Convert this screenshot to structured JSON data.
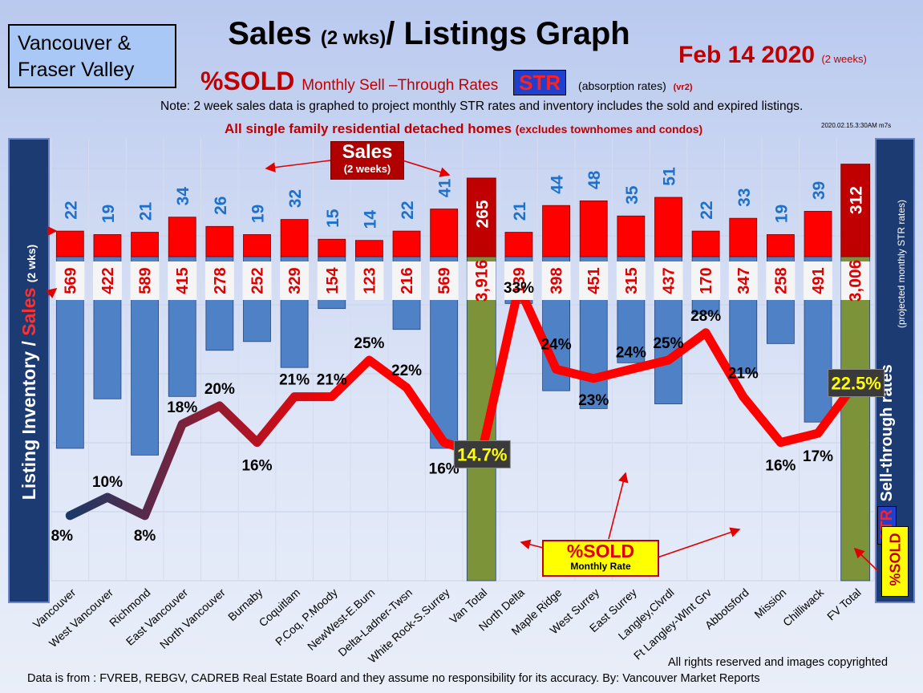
{
  "header": {
    "region_label": "Vancouver & Fraser Valley",
    "title_main": "Sales",
    "title_small": "(2 wks)",
    "title_rest": "/ Listings Graph",
    "date": "Feb 14 2020",
    "date_note": "(2 weeks)",
    "subtitle_sold": "%SOLD",
    "subtitle_rest": "Monthly Sell –Through Rates",
    "str_badge": "STR",
    "absorption": "(absorption rates)",
    "version": "(vr2)",
    "note": "Note: 2 week sales data is graphed to project monthly STR rates and inventory includes the sold and expired listings.",
    "scope_main": "All single family residential detached homes",
    "scope_small": "(excludes townhomes and condos)",
    "stamp": "2020.02.15.3:30AM m7s"
  },
  "side_labels": {
    "left_main": "Listing Inventory /",
    "left_red": "Sales",
    "left_small": "(2 wks)",
    "right_str": "STR",
    "right_main": "Sell-through rates",
    "right_sub": "(projected monthly STR rates)",
    "sold_badge": "%SOLD"
  },
  "legend": {
    "sales_title": "Sales",
    "sales_sub": "(2 weeks)",
    "sold_title": "%SOLD",
    "sold_sub": "Monthly Rate"
  },
  "footer": {
    "source": "Data is from : FVREB, REBGV, CADREB Real Estate Board and they assume no responsibility for its accuracy. By: Vancouver Market Reports",
    "rights": "All rights reserved and  images copyrighted"
  },
  "colors": {
    "sales_bar": "#ff0000",
    "inventory_bar": "#4f81c7",
    "total_bar": "#7c933a",
    "sales_label": "#1f70c8",
    "inventory_label": "#e00000",
    "line_start": "#1a3a66",
    "line_end": "#ff0000"
  },
  "chart_data": {
    "type": "bar",
    "categories": [
      "Vancouver",
      "West Vancouver",
      "Richmond",
      "East Vancouver",
      "North Vancouver",
      "Burnaby",
      "Coquitlam",
      "P.Coq, P.Moody",
      "NewWest-E.Burn",
      "Delta-Ladner-Twsn",
      "White Rock-S.Surrey",
      "Van Total",
      "North Delta",
      "Maple Ridge",
      "West Surrey",
      "East Surrey",
      "Langley,Clvrdl",
      "Ft Langley-Wlnt Grv",
      "Abbotsford",
      "Mission",
      "Chilliwack",
      "FV Total"
    ],
    "series": [
      {
        "name": "Sales",
        "values": [
          22,
          19,
          21,
          34,
          26,
          19,
          32,
          15,
          14,
          22,
          41,
          265,
          21,
          44,
          48,
          35,
          51,
          22,
          33,
          19,
          39,
          312
        ],
        "labels": [
          "22",
          "19",
          "21",
          "34",
          "26",
          "19",
          "32",
          "15",
          "14",
          "22",
          "41",
          "265",
          "21",
          "44",
          "48",
          "35",
          "51",
          "22",
          "33",
          "19",
          "39",
          "312"
        ]
      },
      {
        "name": "Listing Inventory",
        "values": [
          569,
          422,
          589,
          415,
          278,
          252,
          329,
          154,
          123,
          216,
          569,
          3916,
          139,
          398,
          451,
          315,
          437,
          170,
          347,
          258,
          491,
          3006
        ],
        "labels": [
          "569",
          "422",
          "589",
          "415",
          "278",
          "252",
          "329",
          "154",
          "123",
          "216",
          "569",
          "3,916",
          "139",
          "398",
          "451",
          "315",
          "437",
          "170",
          "347",
          "258",
          "491",
          "3,006"
        ]
      },
      {
        "name": "%SOLD",
        "values": [
          8,
          10,
          8,
          18,
          20,
          16,
          21,
          21,
          25,
          22,
          16,
          14.7,
          33,
          24,
          23,
          24,
          25,
          28,
          21,
          16,
          17,
          22.5
        ],
        "labels": [
          "8%",
          "10%",
          "8%",
          "18%",
          "20%",
          "16%",
          "21%",
          "21%",
          "25%",
          "22%",
          "16%",
          "14.7%",
          "33%",
          "24%",
          "23%",
          "24%",
          "25%",
          "28%",
          "21%",
          "16%",
          "17%",
          "22.5%"
        ]
      }
    ],
    "total_categories": [
      "Van Total",
      "FV Total"
    ]
  }
}
